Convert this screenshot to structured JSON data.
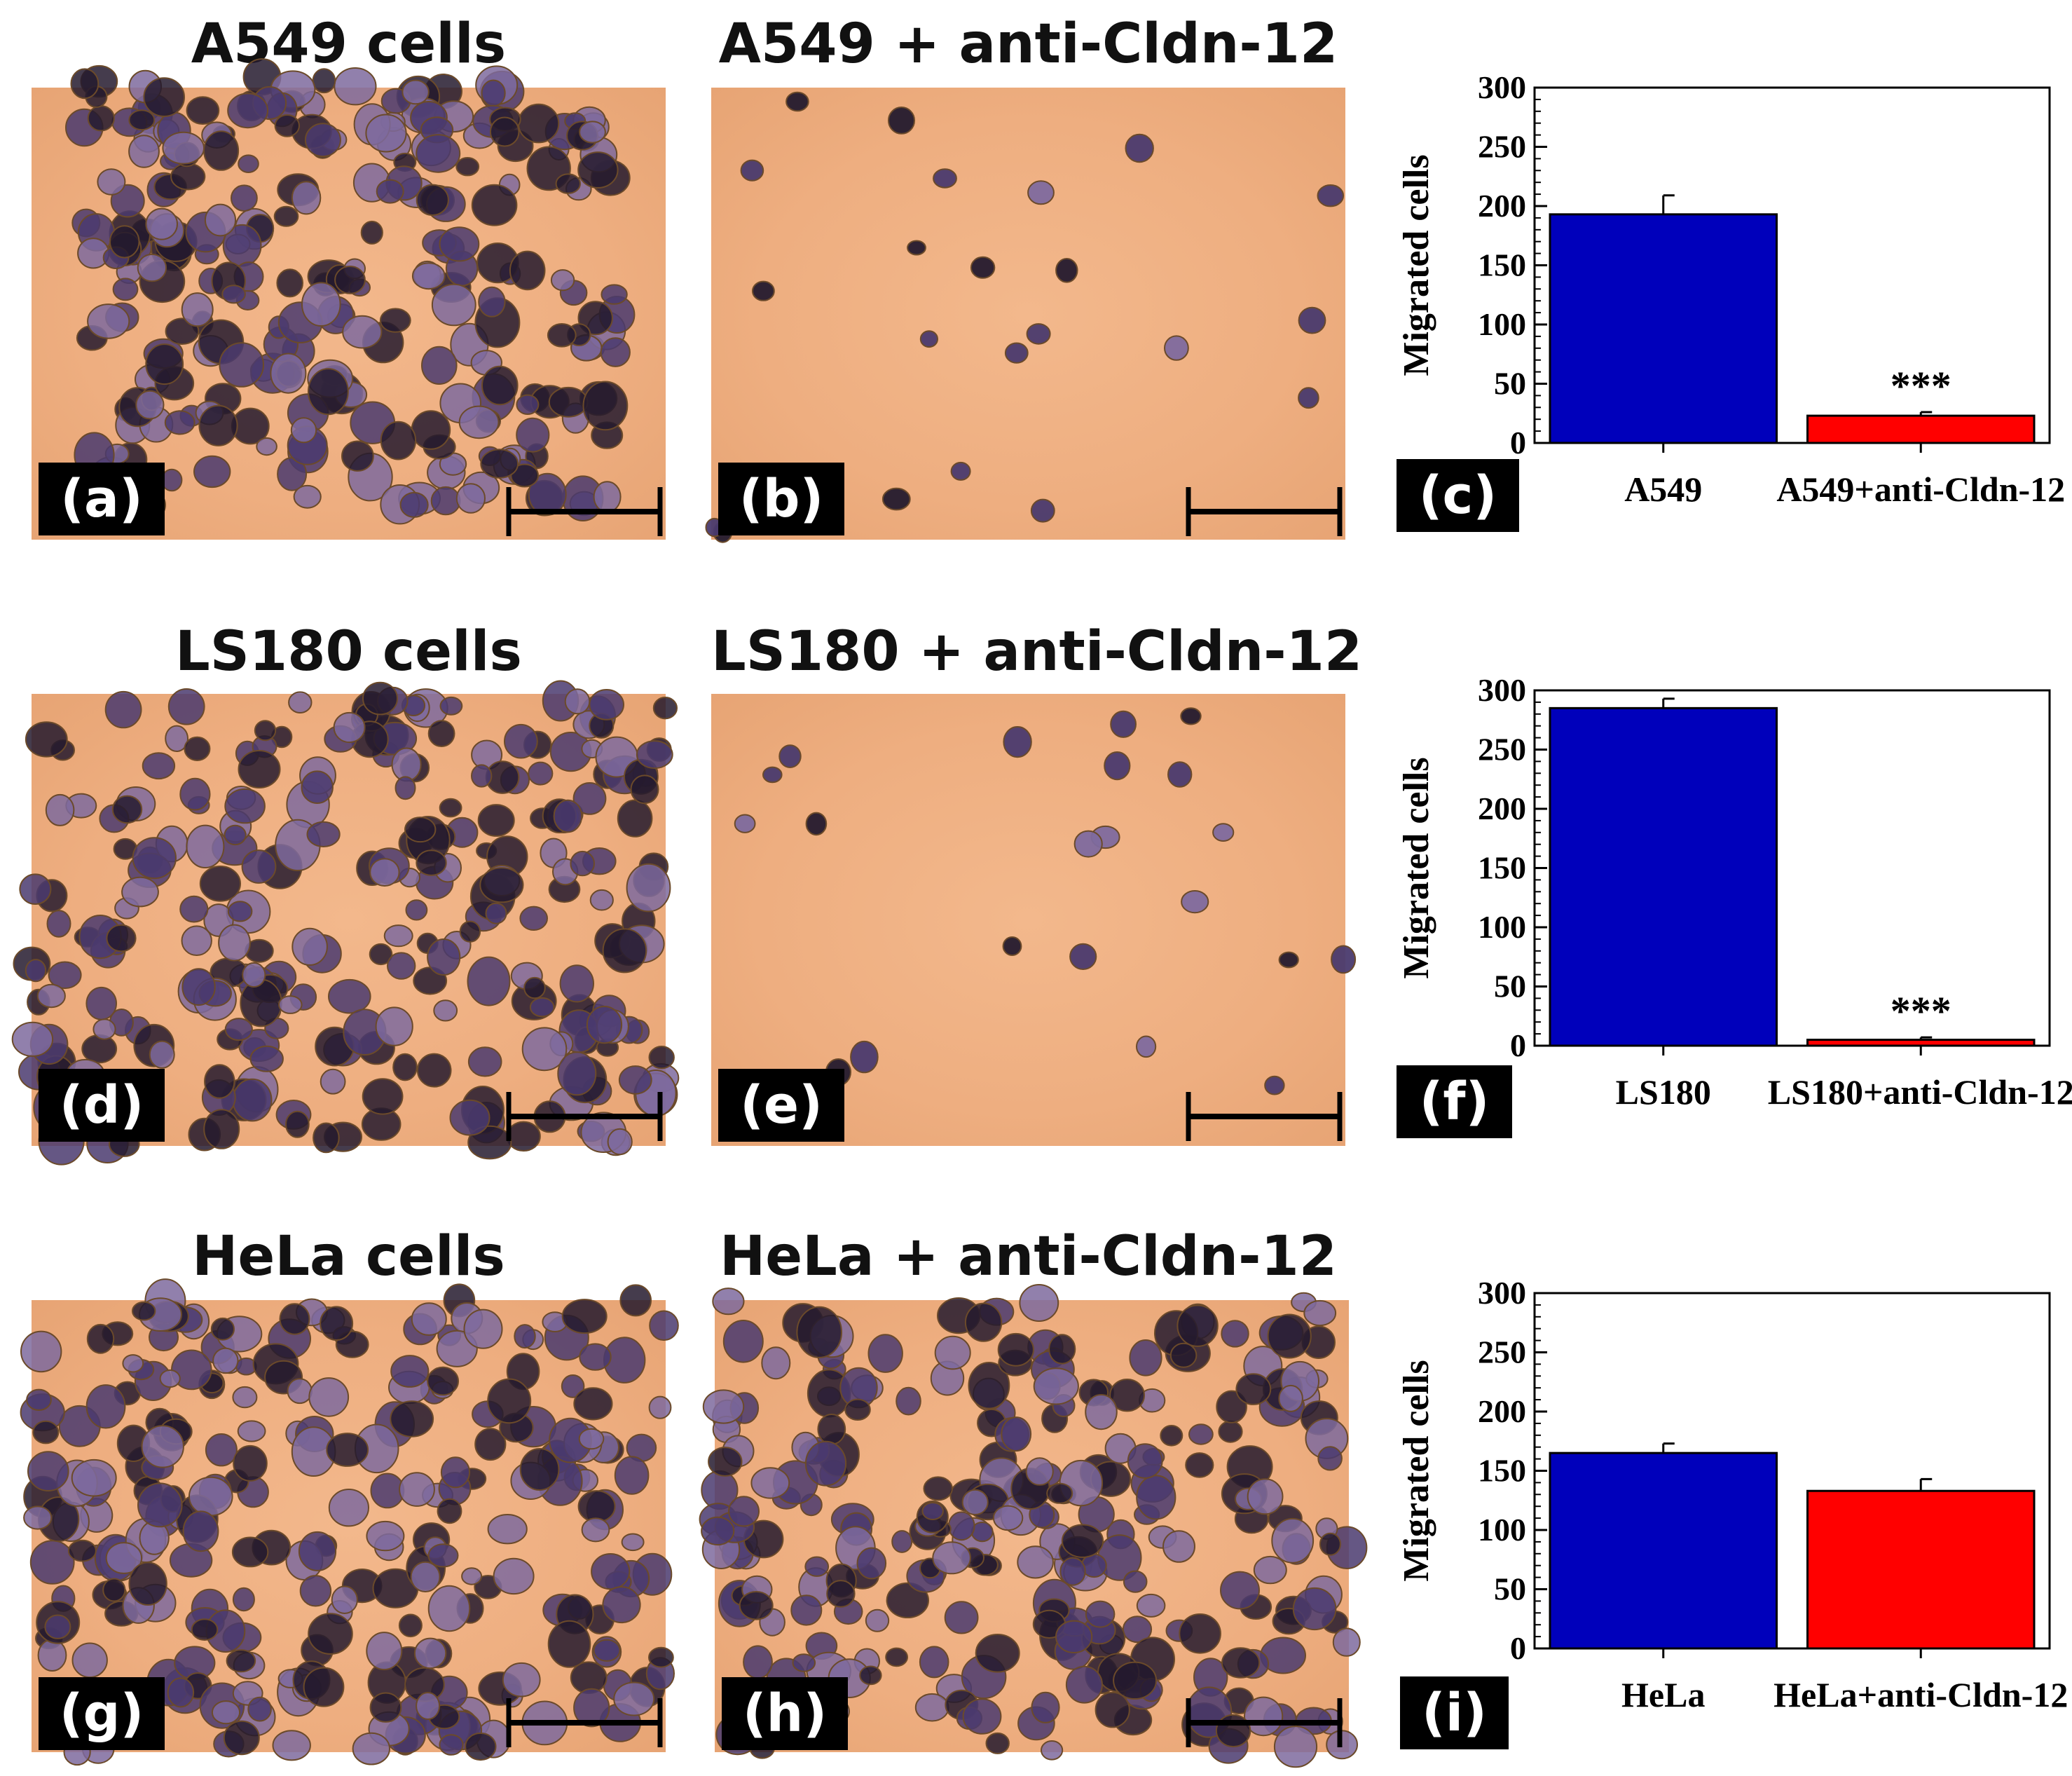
{
  "colors": {
    "bar_control": "#0000bb",
    "bar_treated": "#ff0000",
    "background": "#eea97c",
    "cells": "#3a2a5a",
    "scale_bar": "#000000"
  },
  "rows": [
    {
      "control_title": "A549 cells",
      "treated_title": "A549 + anti-Cldn-12",
      "labels": [
        "(a)",
        "(b)",
        "(c)"
      ]
    },
    {
      "control_title": "LS180 cells",
      "treated_title": "LS180 + anti-Cldn-12",
      "labels": [
        "(d)",
        "(e)",
        "(f)"
      ]
    },
    {
      "control_title": "HeLa cells",
      "treated_title": "HeLa + anti-Cldn-12",
      "labels": [
        "(g)",
        "(h)",
        "(i)"
      ]
    }
  ],
  "chart_data": [
    {
      "type": "bar",
      "categories": [
        "A549",
        "A549+anti-Cldn-12"
      ],
      "values": [
        193,
        23
      ],
      "errors": [
        16,
        3
      ],
      "annotations": [
        "",
        "***"
      ],
      "ylabel": "Migrated cells",
      "yticks": [
        0,
        50,
        100,
        150,
        200,
        250,
        300
      ],
      "ylim": [
        0,
        300
      ]
    },
    {
      "type": "bar",
      "categories": [
        "LS180",
        "LS180+anti-Cldn-12"
      ],
      "values": [
        285,
        5
      ],
      "errors": [
        8,
        2
      ],
      "annotations": [
        "",
        "***"
      ],
      "ylabel": "Migrated cells",
      "yticks": [
        0,
        50,
        100,
        150,
        200,
        250,
        300
      ],
      "ylim": [
        0,
        300
      ]
    },
    {
      "type": "bar",
      "categories": [
        "HeLa",
        "HeLa+anti-Cldn-12"
      ],
      "values": [
        165,
        133
      ],
      "errors": [
        8,
        10
      ],
      "annotations": [
        "",
        ""
      ],
      "ylabel": "Migrated cells",
      "yticks": [
        0,
        50,
        100,
        150,
        200,
        250,
        300
      ],
      "ylim": [
        0,
        300
      ]
    }
  ]
}
